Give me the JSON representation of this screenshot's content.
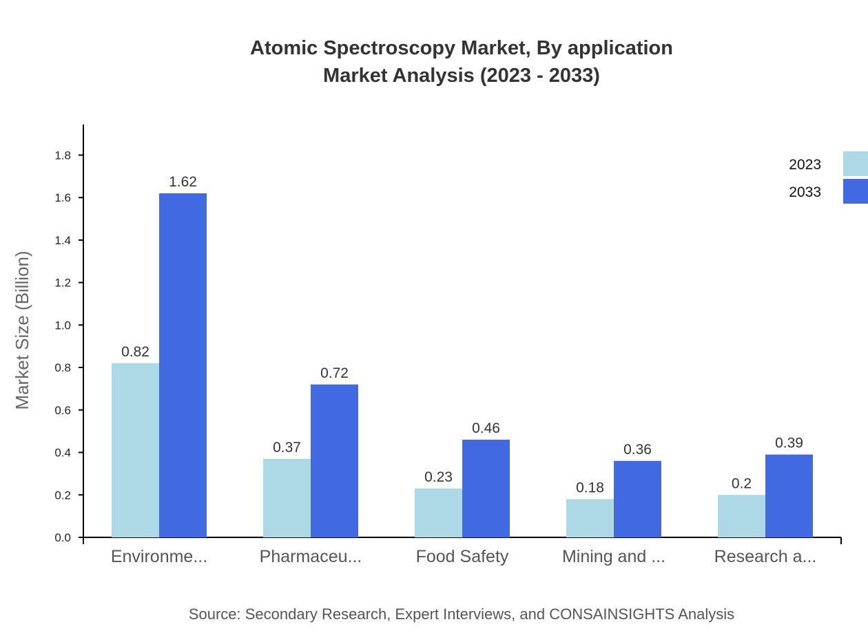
{
  "chart_data": {
    "type": "bar",
    "title": [
      "Atomic Spectroscopy Market, By application",
      "Market Analysis (2023 - 2033)"
    ],
    "xlabel": "",
    "ylabel": "Market Size (Billion)",
    "ylim": [
      0,
      1.944
    ],
    "yticks": [
      "0.0",
      "0.2",
      "0.4",
      "0.6",
      "0.8",
      "1.0",
      "1.2",
      "1.4",
      "1.6",
      "1.8"
    ],
    "categories": [
      "Environme...",
      "Pharmaceu...",
      "Food Safety",
      "Mining and ...",
      "Research a..."
    ],
    "series": [
      {
        "name": "2023",
        "color": "#add8e6",
        "values": [
          0.82,
          0.37,
          0.23,
          0.18,
          0.2
        ]
      },
      {
        "name": "2033",
        "color": "#4169e1",
        "values": [
          1.62,
          0.72,
          0.46,
          0.36,
          0.39
        ]
      }
    ],
    "grid": false,
    "legend": "top-right",
    "source": "Source: Secondary Research, Expert Interviews, and CONSAINSIGHTS Analysis"
  }
}
